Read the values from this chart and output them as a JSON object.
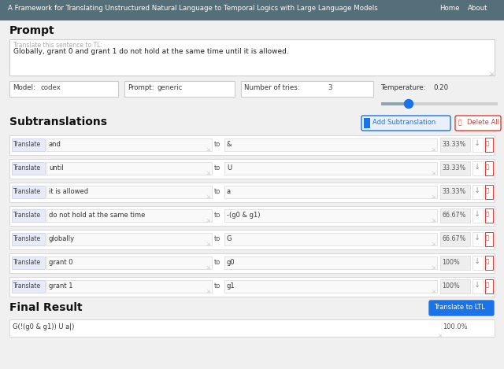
{
  "nav_bg": "#546e7a",
  "nav_text": "A Framework for Translating Unstructured Natural Language to Temporal Logics with Large Language Models",
  "nav_links": [
    "Home",
    "About"
  ],
  "nav_text_color": "#ffffff",
  "page_bg": "#f0f0f0",
  "section_prompt": "Prompt",
  "prompt_placeholder": "Translate this sentence to TL:",
  "prompt_text": "Globally, grant 0 and grant 1 do not hold at the same time until it is allowed.",
  "model_label": "Model:",
  "model_value": "codex",
  "prompt_label": "Prompt:",
  "prompt_value": "generic",
  "tries_label": "Number of tries:",
  "tries_value": "3",
  "temp_label": "Temperature:",
  "temp_value": "0.20",
  "section_subtrans": "Subtranslations",
  "btn_add": "Add Subtranslation",
  "btn_delete": "Delete All",
  "rows": [
    {
      "from": "and",
      "to": "&",
      "pct": "33.33%"
    },
    {
      "from": "until",
      "to": "U",
      "pct": "33.33%"
    },
    {
      "from": "it is allowed",
      "to": "a",
      "pct": "33.33%"
    },
    {
      "from": "do not hold at the same time",
      "to": "-(g0 & g1)",
      "pct": "66.67%"
    },
    {
      "from": "globally",
      "to": "G",
      "pct": "66.67%"
    },
    {
      "from": "grant 0",
      "to": "g0",
      "pct": "100%"
    },
    {
      "from": "grant 1",
      "to": "g1",
      "pct": "100%"
    }
  ],
  "section_final": "Final Result",
  "btn_translate": "Translate to LTL",
  "final_formula": "G(!(g0 & g1)) U a|)",
  "final_pct": "100.0%",
  "box_border": "#cccccc",
  "input_bg": "#ffffff",
  "translate_btn_color": "#e8f0fe",
  "translate_btn_border": "#1a73e8",
  "translate_btn_text": "#1a73e8",
  "delete_btn_color": "#ffffff",
  "delete_btn_border": "#e53935",
  "delete_btn_text": "#e53935",
  "translate_ltl_bg": "#1a73e8",
  "translate_ltl_text": "#ffffff",
  "row_bg": "#ffffff",
  "row_border": "#d8d8d8",
  "translate_tag_bg": "#e8eaf6",
  "translate_tag_border": "#c5cae9",
  "translate_tag_text": "#3c4043",
  "pct_bg": "#eeeeee",
  "pct_text_color": "#555555",
  "down_arrow_color": "#9e9e9e",
  "trash_border": "#e53935",
  "trash_bg": "#ffffff",
  "trash_color": "#e53935",
  "separator_color": "#e0e0e0"
}
